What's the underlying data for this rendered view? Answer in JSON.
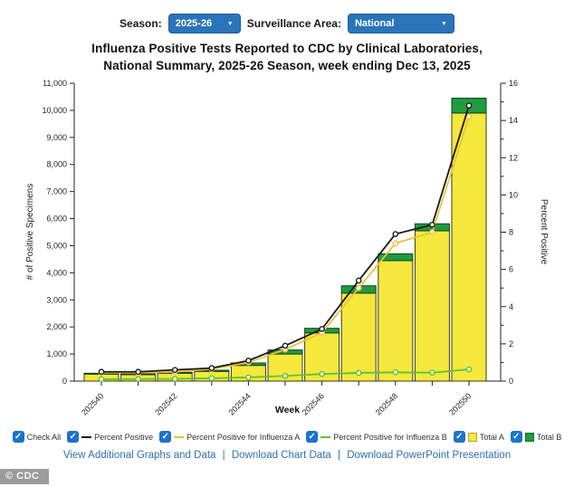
{
  "header": {
    "season_label": "Season:",
    "season_value": "2025-26",
    "area_label": "Surveillance Area:",
    "area_value": "National"
  },
  "title_line1": "Influenza Positive Tests Reported to CDC by Clinical Laboratories,",
  "title_line2": "National Summary, 2025-26 Season, week ending Dec 13, 2025",
  "chart_data": {
    "type": "bar",
    "subtype": "stacked-bars-with-overlaid-lines",
    "title": "Influenza Positive Tests Reported to CDC by Clinical Laboratories, National Summary, 2025-26 Season, week ending Dec 13, 2025",
    "xlabel": "Week",
    "ylabel_left": "# of Positive Specimens",
    "ylabel_right": "Percent Positive",
    "ylim_left": [
      0,
      11000
    ],
    "ylim_right": [
      0,
      16
    ],
    "y_ticks_left_step": 1000,
    "y_ticks_right_step": 2,
    "grid": "off",
    "categories": [
      "202540",
      "202541",
      "202542",
      "202543",
      "202544",
      "202545",
      "202546",
      "202547",
      "202548",
      "202549",
      "202550"
    ],
    "x_tick_labels_shown": [
      "202540",
      "202542",
      "202544",
      "202546",
      "202548",
      "202550"
    ],
    "bar_series": [
      {
        "name": "Total A",
        "color": "#F6E83C",
        "axis": "left",
        "values": [
          260,
          240,
          290,
          360,
          580,
          1000,
          1780,
          3250,
          4450,
          5550,
          9900
        ]
      },
      {
        "name": "Total B",
        "color": "#1E9C3F",
        "axis": "left",
        "values": [
          30,
          30,
          35,
          40,
          90,
          150,
          170,
          270,
          250,
          260,
          550
        ]
      }
    ],
    "line_series": [
      {
        "name": "Percent Positive",
        "color": "#1A1A1A",
        "axis": "right",
        "values": [
          0.5,
          0.5,
          0.6,
          0.7,
          1.1,
          1.9,
          2.8,
          5.4,
          7.9,
          8.4,
          14.8
        ]
      },
      {
        "name": "Percent Positive for Influenza A",
        "color": "#EFC13B",
        "axis": "right",
        "values": [
          0.45,
          0.45,
          0.5,
          0.65,
          1.0,
          1.7,
          2.6,
          5.0,
          7.4,
          8.0,
          14.2
        ]
      },
      {
        "name": "Percent Positive for Influenza B",
        "color": "#5BC236",
        "axis": "right",
        "values": [
          0.1,
          0.11,
          0.12,
          0.15,
          0.2,
          0.28,
          0.38,
          0.44,
          0.47,
          0.45,
          0.63
        ]
      }
    ]
  },
  "legend": {
    "items": [
      {
        "label": "Check All",
        "checked": true,
        "swatch": "none",
        "color": ""
      },
      {
        "label": "Percent Positive",
        "checked": true,
        "swatch": "line",
        "color": "#1A1A1A"
      },
      {
        "label": "Percent Positive for Influenza A",
        "checked": true,
        "swatch": "line",
        "color": "#EFC13B"
      },
      {
        "label": "Percent Positive for Influenza B",
        "checked": true,
        "swatch": "line",
        "color": "#5BC236"
      },
      {
        "label": "Total A",
        "checked": true,
        "swatch": "square",
        "color": "#F6E83C"
      },
      {
        "label": "Total B",
        "checked": true,
        "swatch": "square",
        "color": "#1E9C3F"
      }
    ]
  },
  "links": {
    "separator": "|",
    "items": [
      "View Additional Graphs and Data",
      "Download Chart Data",
      "Download PowerPoint Presentation"
    ]
  },
  "watermark": "© CDC",
  "colors": {
    "dropdown_blue": "#2A74B9",
    "checkbox_blue": "#1B72CE",
    "link_blue": "#2F6FAD",
    "bar_yellow": "#F6E83C",
    "bar_green": "#1E9C3F",
    "line_black": "#1A1A1A",
    "line_yellow": "#EFC13B",
    "line_green": "#5BC236",
    "watermark_gray": "#9B9B9B"
  }
}
